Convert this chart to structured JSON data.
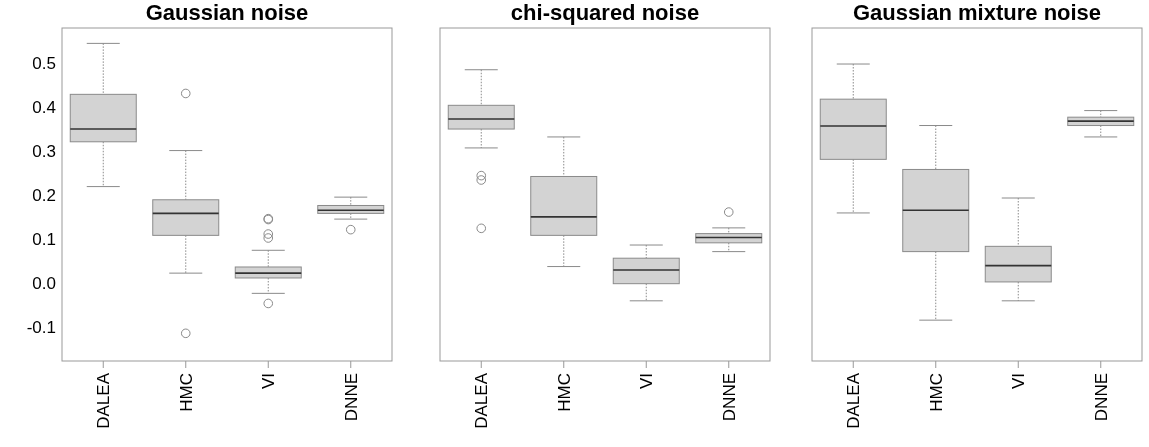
{
  "chart_data": [
    {
      "type": "box",
      "title": "Gaussian noise",
      "categories": [
        "DALEA",
        "HMC",
        "VI",
        "DNNE"
      ],
      "color": "#d3d3d3",
      "ylim": [
        -0.178,
        0.58
      ],
      "yticks": [
        {
          "value": -0.1,
          "label": "-0.1"
        },
        {
          "value": 0,
          "label": "0.0"
        },
        0.1,
        0.2,
        0.3,
        0.4,
        0.5
      ],
      "grid": false,
      "boxes": [
        {
          "low": 0.219,
          "q1": 0.321,
          "median": 0.35,
          "q3": 0.429,
          "high": 0.545
        },
        {
          "low": 0.022,
          "q1": 0.108,
          "median": 0.158,
          "q3": 0.189,
          "high": 0.301,
          "outliers": [
            0.431,
            -0.115
          ]
        },
        {
          "low": -0.024,
          "q1": 0.011,
          "median": 0.022,
          "q3": 0.036,
          "high": 0.074,
          "outliers": [
            0.146,
            0.144,
            0.111,
            0.102,
            -0.047
          ]
        },
        {
          "low": 0.145,
          "q1": 0.158,
          "median": 0.165,
          "q3": 0.176,
          "high": 0.195,
          "outliers": [
            0.121
          ]
        }
      ]
    },
    {
      "type": "box",
      "title": "chi-squared noise",
      "categories": [
        "DALEA",
        "HMC",
        "VI",
        "DNNE"
      ],
      "color": "#d3d3d3",
      "ylim": [
        -0.178,
        0.58
      ],
      "tick_labels": "x",
      "grid": false,
      "boxes": [
        {
          "low": 0.307,
          "q1": 0.35,
          "median": 0.373,
          "q3": 0.404,
          "high": 0.485,
          "outliers": [
            0.244,
            0.234,
            0.124
          ]
        },
        {
          "low": 0.037,
          "q1": 0.108,
          "median": 0.15,
          "q3": 0.242,
          "high": 0.332
        },
        {
          "low": -0.041,
          "q1": -0.002,
          "median": 0.029,
          "q3": 0.056,
          "high": 0.086
        },
        {
          "low": 0.071,
          "q1": 0.091,
          "median": 0.103,
          "q3": 0.112,
          "high": 0.125,
          "outliers": [
            0.161
          ]
        }
      ]
    },
    {
      "type": "box",
      "title": "Gaussian mixture noise",
      "categories": [
        "DALEA",
        "HMC",
        "VI",
        "DNNE"
      ],
      "color": "#d3d3d3",
      "ylim": [
        -0.178,
        0.58
      ],
      "tick_labels": "x",
      "grid": false,
      "boxes": [
        {
          "low": 0.159,
          "q1": 0.281,
          "median": 0.357,
          "q3": 0.418,
          "high": 0.498
        },
        {
          "low": -0.085,
          "q1": 0.071,
          "median": 0.165,
          "q3": 0.258,
          "high": 0.358
        },
        {
          "low": -0.041,
          "q1": 0.002,
          "median": 0.039,
          "q3": 0.083,
          "high": 0.193
        },
        {
          "low": 0.332,
          "q1": 0.358,
          "median": 0.368,
          "q3": 0.377,
          "high": 0.392
        }
      ]
    }
  ]
}
